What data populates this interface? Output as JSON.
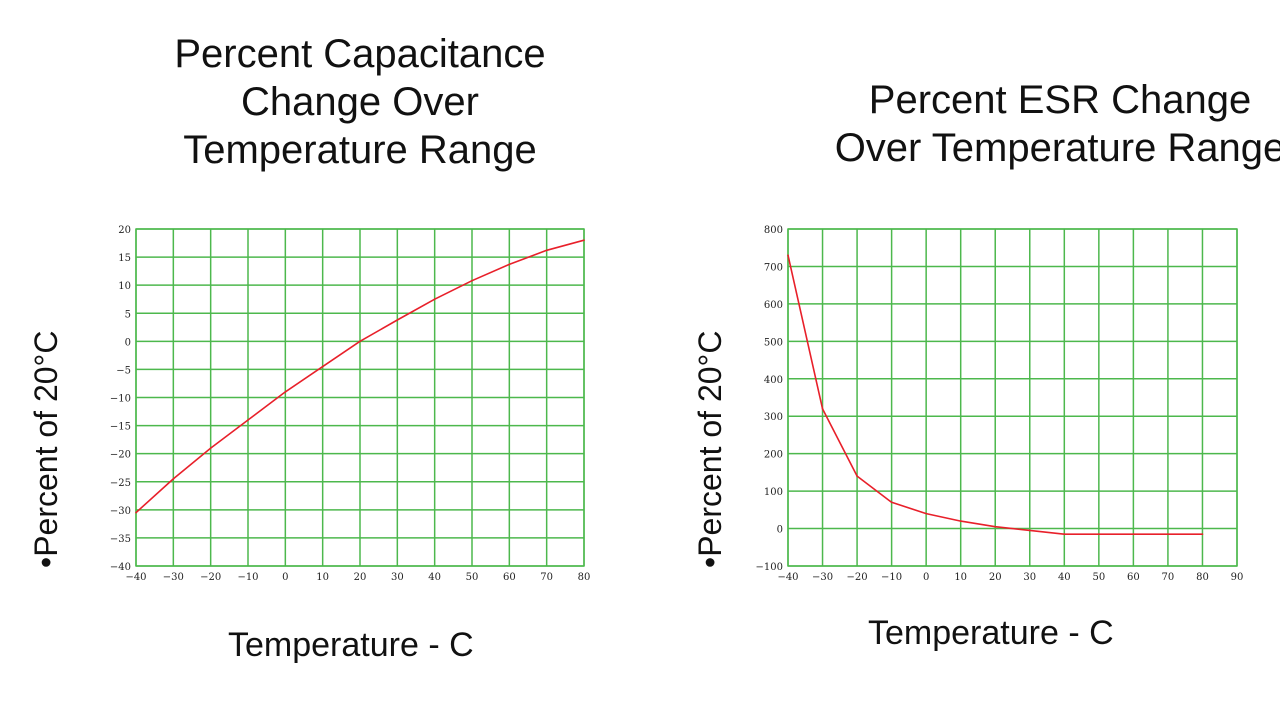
{
  "chart_data": [
    {
      "type": "line",
      "title_lines": [
        "Percent Capacitance",
        "Change Over",
        "Temperature Range"
      ],
      "xlabel": "Temperature - C",
      "ylabel": "•Percent of 20°C",
      "xlim": [
        -40,
        80
      ],
      "ylim": [
        -40,
        20
      ],
      "x_ticks": [
        -40,
        -30,
        -20,
        -10,
        0,
        10,
        20,
        30,
        40,
        50,
        60,
        70,
        80
      ],
      "y_ticks": [
        20,
        15,
        10,
        5,
        0,
        -5,
        -10,
        -15,
        -20,
        -25,
        -30,
        -35,
        -40
      ],
      "grid": true,
      "series": [
        {
          "name": "Capacitance change",
          "color": "#e8202a",
          "x": [
            -40,
            -30,
            -20,
            -10,
            0,
            10,
            20,
            30,
            40,
            50,
            60,
            70,
            80
          ],
          "y": [
            -30.5,
            -24.5,
            -19,
            -14,
            -9,
            -4.5,
            0,
            3.8,
            7.5,
            10.8,
            13.7,
            16.2,
            18
          ]
        }
      ]
    },
    {
      "type": "line",
      "title_lines": [
        "Percent ESR Change",
        "Over Temperature Range"
      ],
      "xlabel": "Temperature - C",
      "ylabel": "•Percent of 20°C",
      "xlim": [
        -40,
        90
      ],
      "ylim": [
        -100,
        800
      ],
      "x_ticks": [
        -40,
        -30,
        -20,
        -10,
        0,
        10,
        20,
        30,
        40,
        50,
        60,
        70,
        80,
        90
      ],
      "y_ticks": [
        800,
        700,
        600,
        500,
        400,
        300,
        200,
        100,
        0,
        -100
      ],
      "grid": true,
      "series": [
        {
          "name": "ESR change",
          "color": "#e8202a",
          "x": [
            -40,
            -30,
            -20,
            -10,
            0,
            10,
            20,
            30,
            40,
            50,
            60,
            70,
            80
          ],
          "y": [
            730,
            320,
            140,
            70,
            40,
            20,
            5,
            -5,
            -15,
            -15,
            -15,
            -15,
            -15
          ]
        }
      ]
    }
  ]
}
